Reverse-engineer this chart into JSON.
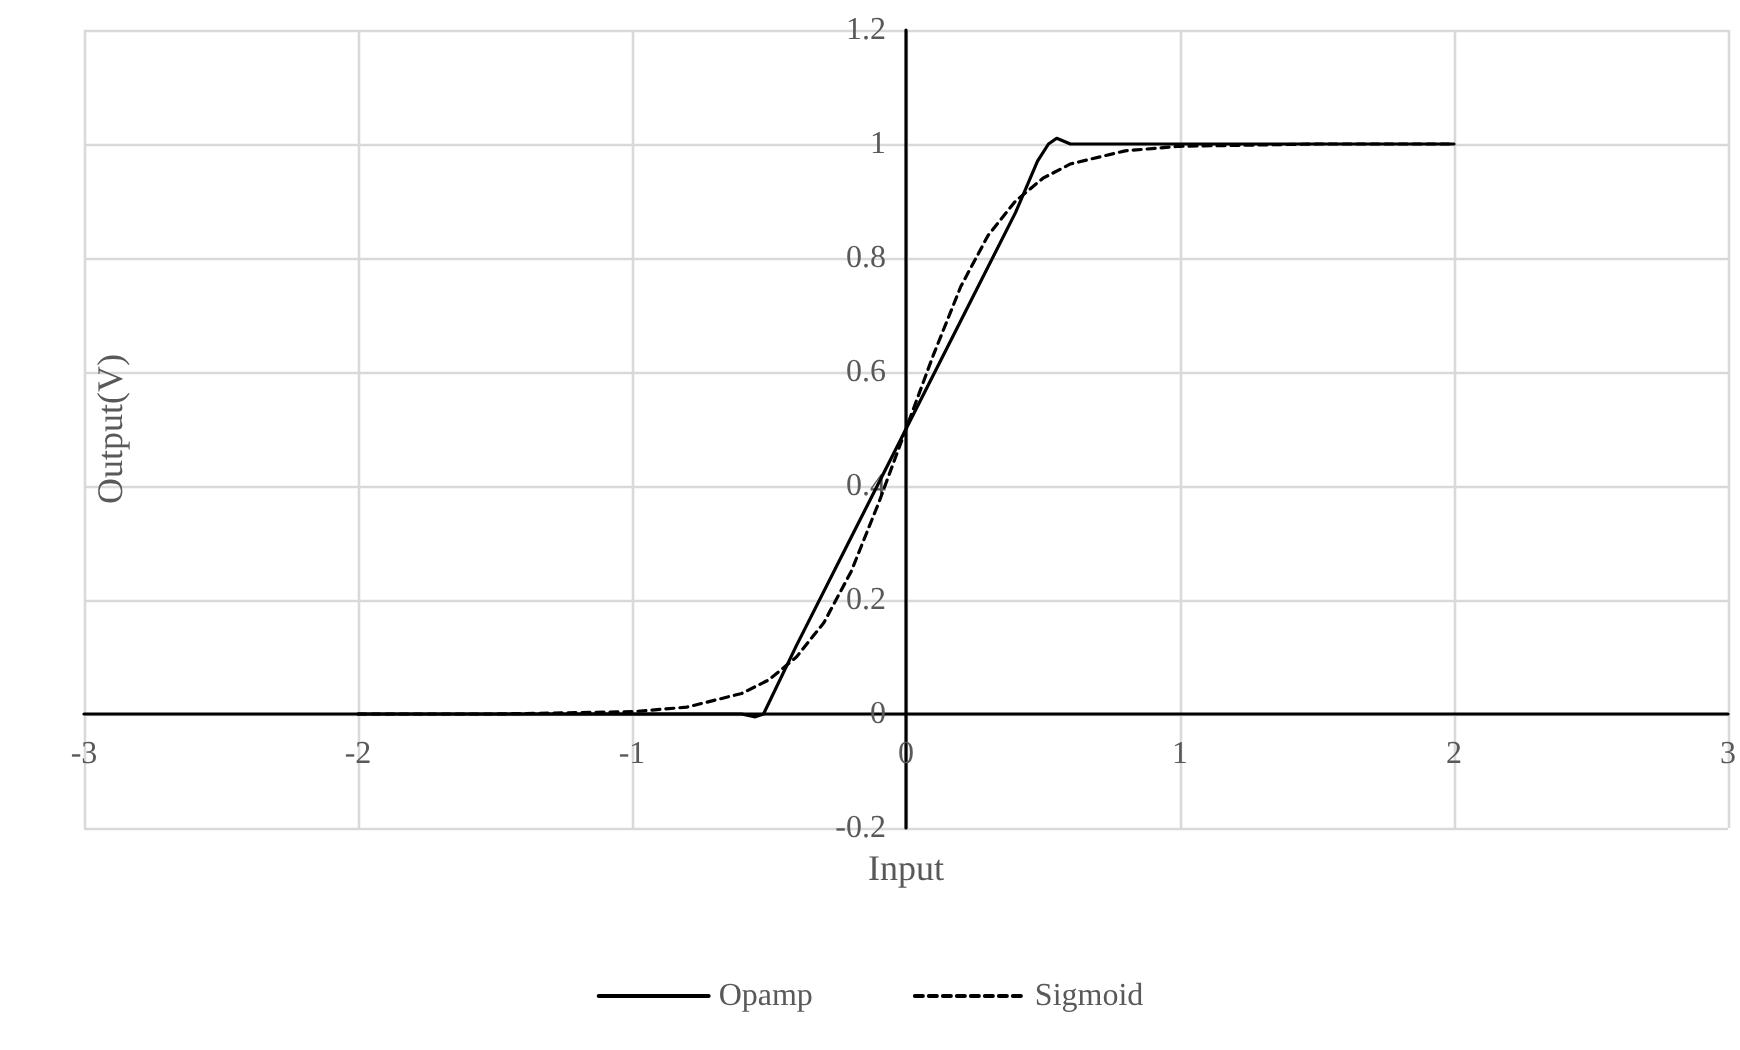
{
  "chart_data": {
    "type": "line",
    "xlabel": "Input",
    "ylabel": "Output(V)",
    "xlim": [
      -3,
      3
    ],
    "ylim": [
      -0.2,
      1.2
    ],
    "xticks": [
      -3,
      -2,
      -1,
      0,
      1,
      2,
      3
    ],
    "yticks": [
      -0.2,
      0,
      0.2,
      0.4,
      0.6,
      0.8,
      1,
      1.2
    ],
    "grid": true,
    "legend": "bottom",
    "marker": "none",
    "series": [
      {
        "name": "Opamp",
        "color": "#000000",
        "line_style": "solid",
        "x": [
          -2,
          -1,
          -0.6,
          -0.55,
          -0.52,
          -0.4,
          -0.2,
          0,
          0.2,
          0.4,
          0.48,
          0.52,
          0.55,
          0.6,
          1,
          2
        ],
        "values": [
          0,
          0,
          0,
          -0.005,
          0,
          0.12,
          0.31,
          0.5,
          0.69,
          0.88,
          0.97,
          1.0,
          1.01,
          1.0,
          1,
          1
        ]
      },
      {
        "name": "Sigmoid",
        "color": "#000000",
        "line_style": "dashed",
        "x": [
          -2,
          -1.5,
          -1,
          -0.8,
          -0.6,
          -0.5,
          -0.4,
          -0.3,
          -0.2,
          -0.1,
          0,
          0.1,
          0.2,
          0.3,
          0.4,
          0.5,
          0.6,
          0.8,
          1,
          1.5,
          2
        ],
        "values": [
          0,
          0,
          0.004,
          0.012,
          0.036,
          0.06,
          0.1,
          0.16,
          0.25,
          0.37,
          0.5,
          0.63,
          0.75,
          0.84,
          0.9,
          0.94,
          0.965,
          0.988,
          0.996,
          1,
          1
        ]
      }
    ]
  }
}
